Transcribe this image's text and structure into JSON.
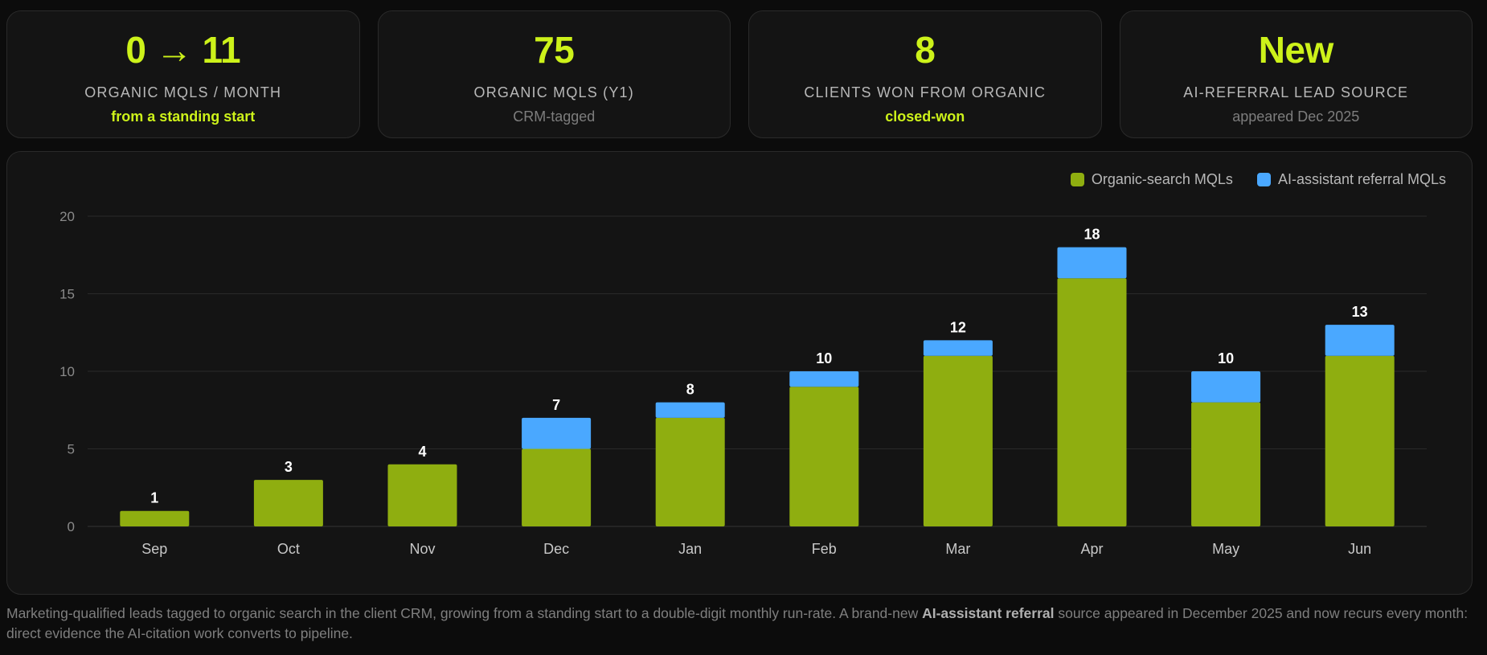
{
  "kpis": [
    {
      "value": "0 → 11",
      "label": "ORGANIC MQLS / MONTH",
      "sub": "from a standing start",
      "sub_style": "accent"
    },
    {
      "value": "75",
      "label": "ORGANIC MQLS (Y1)",
      "sub": "CRM-tagged",
      "sub_style": "muted"
    },
    {
      "value": "8",
      "label": "CLIENTS WON FROM ORGANIC",
      "sub": "closed-won",
      "sub_style": "accent"
    },
    {
      "value": "New",
      "label": "AI-REFERRAL LEAD SOURCE",
      "sub": "appeared Dec 2025",
      "sub_style": "muted"
    }
  ],
  "colors": {
    "accent": "#cdf21a",
    "organic": "#8fae10",
    "ai_referral": "#4aa8ff",
    "grid": "#2a2a2a",
    "axis_text": "#8a8a8a"
  },
  "chart_data": {
    "type": "bar",
    "stacked": true,
    "categories": [
      "Sep",
      "Oct",
      "Nov",
      "Dec",
      "Jan",
      "Feb",
      "Mar",
      "Apr",
      "May",
      "Jun"
    ],
    "series": [
      {
        "name": "Organic-search MQLs",
        "values": [
          1,
          3,
          4,
          5,
          7,
          9,
          11,
          16,
          8,
          11
        ]
      },
      {
        "name": "AI-assistant referral MQLs",
        "values": [
          0,
          0,
          0,
          2,
          1,
          1,
          1,
          2,
          2,
          2
        ]
      }
    ],
    "totals": [
      "1",
      "3",
      "4",
      "7",
      "8",
      "10",
      "12",
      "18",
      "10",
      "13"
    ],
    "ylim": [
      0,
      20
    ],
    "yticks": [
      "0",
      "5",
      "10",
      "15",
      "20"
    ],
    "grid": true,
    "legend_position": "top-right"
  },
  "caption": {
    "part1": "Marketing-qualified leads tagged to organic search in the client CRM, growing from a standing start to a double-digit monthly run-rate. A brand-new ",
    "bold": "AI-assistant referral",
    "part2": " source appeared in December 2025 and now recurs every month: direct evidence the AI-citation work converts to pipeline."
  }
}
